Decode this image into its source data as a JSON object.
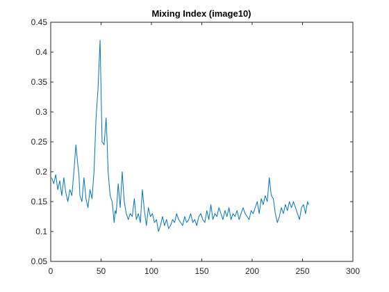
{
  "chart_data": {
    "type": "line",
    "title": "Mixing Index (image10)",
    "xlabel": "",
    "ylabel": "",
    "xlim": [
      0,
      300
    ],
    "ylim": [
      0.05,
      0.45
    ],
    "xticks": [
      0,
      50,
      100,
      150,
      200,
      250,
      300
    ],
    "yticks": [
      0.05,
      0.1,
      0.15,
      0.2,
      0.25,
      0.3,
      0.35,
      0.4,
      0.45
    ],
    "xtick_labels": [
      "0",
      "50",
      "100",
      "150",
      "200",
      "250",
      "300"
    ],
    "ytick_labels": [
      "0.05",
      "0.1",
      "0.15",
      "0.2",
      "0.25",
      "0.3",
      "0.35",
      "0.4",
      "0.45"
    ],
    "grid": false,
    "legend": "none",
    "line_color": "#0072BD",
    "axis_color": "#262626",
    "series": [
      {
        "x": [
          1,
          3,
          5,
          7,
          9,
          11,
          13,
          15,
          17,
          19,
          21,
          23,
          25,
          27,
          28,
          29,
          31,
          33,
          35,
          37,
          39,
          41,
          43,
          45,
          47,
          49,
          51,
          53,
          55,
          56,
          57,
          59,
          61,
          63,
          64,
          65,
          67,
          69,
          71,
          73,
          75,
          77,
          79,
          81,
          83,
          85,
          87,
          89,
          91,
          93,
          95,
          97,
          99,
          101,
          103,
          105,
          107,
          109,
          111,
          113,
          115,
          117,
          119,
          121,
          123,
          125,
          127,
          129,
          131,
          133,
          135,
          137,
          139,
          141,
          143,
          145,
          147,
          149,
          151,
          153,
          155,
          157,
          159,
          161,
          163,
          165,
          167,
          169,
          171,
          173,
          175,
          177,
          179,
          181,
          183,
          185,
          187,
          189,
          191,
          193,
          195,
          197,
          199,
          201,
          203,
          205,
          207,
          209,
          211,
          213,
          215,
          217,
          219,
          221,
          223,
          225,
          227,
          229,
          231,
          233,
          235,
          237,
          239,
          241,
          243,
          245,
          247,
          249,
          251,
          253,
          255,
          256
        ],
        "y": [
          0.19,
          0.18,
          0.195,
          0.17,
          0.185,
          0.16,
          0.19,
          0.165,
          0.15,
          0.17,
          0.16,
          0.2,
          0.245,
          0.21,
          0.195,
          0.16,
          0.15,
          0.19,
          0.155,
          0.14,
          0.17,
          0.155,
          0.2,
          0.29,
          0.34,
          0.42,
          0.25,
          0.245,
          0.29,
          0.25,
          0.2,
          0.16,
          0.15,
          0.115,
          0.135,
          0.13,
          0.18,
          0.14,
          0.2,
          0.15,
          0.13,
          0.12,
          0.13,
          0.125,
          0.155,
          0.12,
          0.13,
          0.115,
          0.17,
          0.135,
          0.11,
          0.14,
          0.125,
          0.13,
          0.115,
          0.12,
          0.1,
          0.11,
          0.125,
          0.11,
          0.12,
          0.105,
          0.11,
          0.12,
          0.115,
          0.13,
          0.12,
          0.115,
          0.11,
          0.125,
          0.115,
          0.12,
          0.13,
          0.115,
          0.12,
          0.11,
          0.125,
          0.13,
          0.12,
          0.115,
          0.135,
          0.12,
          0.145,
          0.12,
          0.13,
          0.125,
          0.14,
          0.13,
          0.12,
          0.135,
          0.125,
          0.14,
          0.12,
          0.13,
          0.125,
          0.135,
          0.12,
          0.13,
          0.14,
          0.13,
          0.125,
          0.12,
          0.135,
          0.13,
          0.14,
          0.15,
          0.13,
          0.155,
          0.145,
          0.16,
          0.15,
          0.19,
          0.16,
          0.155,
          0.13,
          0.115,
          0.125,
          0.14,
          0.13,
          0.145,
          0.135,
          0.15,
          0.14,
          0.15,
          0.14,
          0.13,
          0.12,
          0.14,
          0.145,
          0.13,
          0.15,
          0.145
        ]
      }
    ]
  }
}
